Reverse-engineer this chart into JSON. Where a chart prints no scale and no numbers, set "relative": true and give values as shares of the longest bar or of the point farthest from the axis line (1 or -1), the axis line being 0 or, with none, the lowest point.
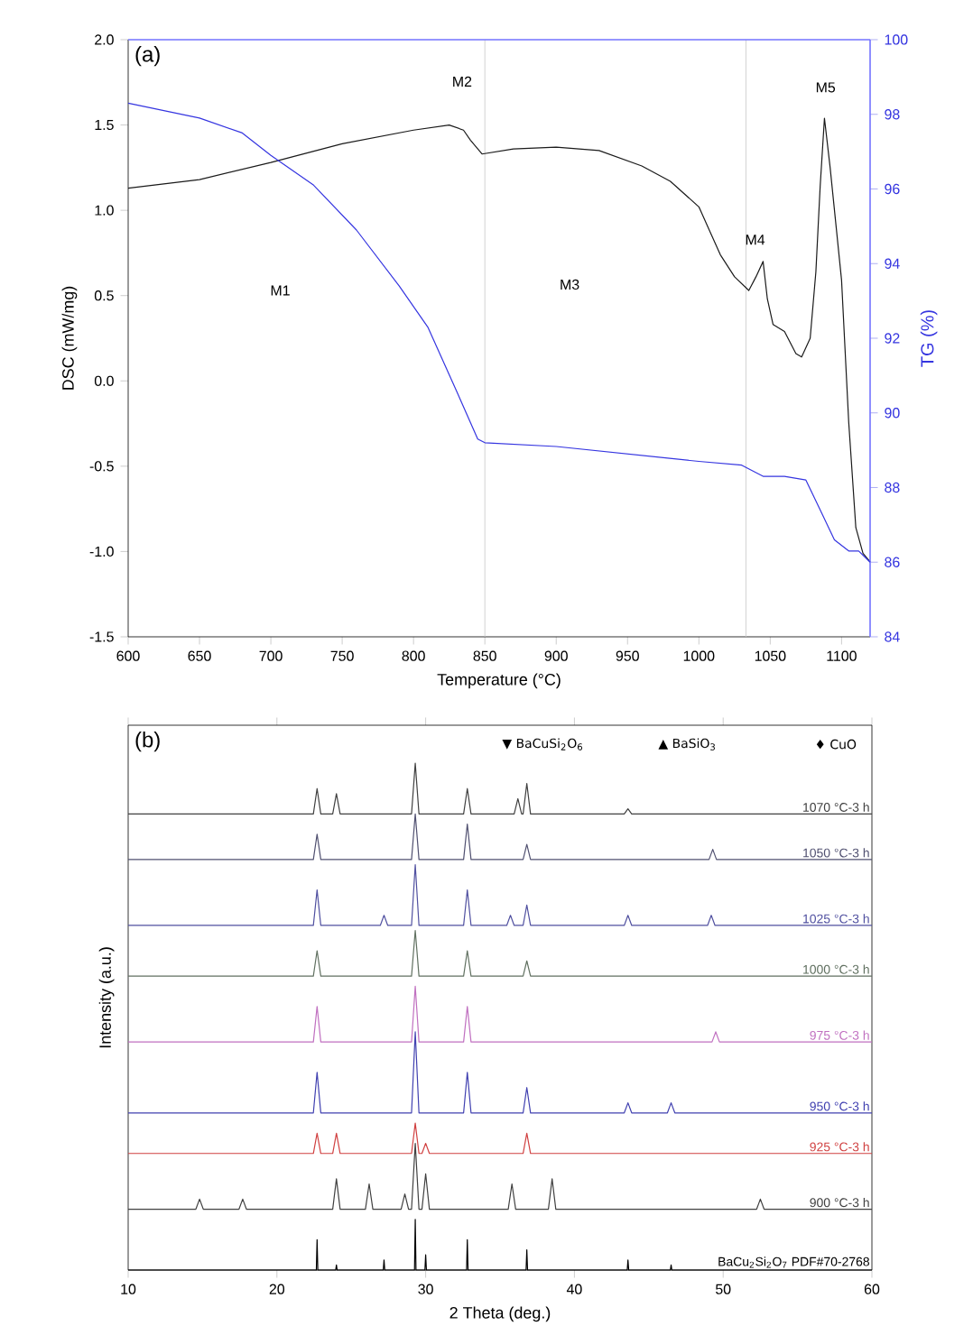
{
  "chart_data": [
    {
      "type": "line",
      "title": "(a)",
      "xlabel": "Temperature (°C)",
      "ylabel": "DSC (mW/mg)",
      "y2label": "TG (%)",
      "xlim": [
        600,
        1120
      ],
      "xticks": [
        600,
        650,
        700,
        750,
        800,
        850,
        900,
        950,
        1000,
        1050,
        1100
      ],
      "ylim": [
        -1.5,
        2.0
      ],
      "yticks": [
        -1.5,
        {
          "value": -1,
          "label": "-1.0"
        },
        -0.5,
        {
          "value": 0,
          "label": "0.0"
        },
        0.5,
        {
          "value": 1,
          "label": "1.0"
        },
        1.5,
        {
          "value": 2,
          "label": "2.0"
        }
      ],
      "y2lim": [
        84,
        100
      ],
      "y2ticks": [
        84,
        86,
        88,
        90,
        92,
        94,
        96,
        98,
        100
      ],
      "marker": "none",
      "series": [
        {
          "color": "#1a1a1a",
          "x": [
            600,
            650,
            700,
            750,
            800,
            825,
            835,
            840,
            848,
            870,
            900,
            930,
            960,
            980,
            1000,
            1015,
            1025,
            1035,
            1040,
            1045,
            1048,
            1052,
            1060,
            1068,
            1072,
            1078,
            1082,
            1085,
            1088,
            1092,
            1100,
            1105,
            1110,
            1115,
            1120
          ],
          "values": [
            1.13,
            1.18,
            1.28,
            1.39,
            1.47,
            1.5,
            1.47,
            1.41,
            1.33,
            1.36,
            1.37,
            1.35,
            1.26,
            1.17,
            1.02,
            0.74,
            0.61,
            0.53,
            0.61,
            0.7,
            0.48,
            0.33,
            0.29,
            0.16,
            0.14,
            0.25,
            0.64,
            1.14,
            1.54,
            1.25,
            0.59,
            -0.24,
            -0.86,
            -1.01,
            -1.06
          ]
        },
        {
          "axis": "y2",
          "color": "#3535e0",
          "x": [
            600,
            650,
            680,
            700,
            730,
            760,
            790,
            810,
            830,
            845,
            850,
            900,
            950,
            1000,
            1030,
            1045,
            1060,
            1075,
            1085,
            1095,
            1105,
            1112,
            1120
          ],
          "values": [
            98.3,
            97.9,
            97.5,
            96.9,
            96.1,
            94.9,
            93.4,
            92.3,
            90.6,
            89.3,
            89.2,
            89.1,
            88.9,
            88.7,
            88.6,
            88.3,
            88.3,
            88.2,
            87.4,
            86.6,
            86.3,
            86.3,
            86.0
          ]
        }
      ],
      "ref_lines": [
        {
          "axis": "x",
          "value": 850,
          "color": "#c8c8c8"
        },
        {
          "axis": "x",
          "value": 1033,
          "color": "#c8c8c8"
        }
      ],
      "annotations": [
        "M1",
        "M2",
        "M3",
        "M4",
        "M5"
      ]
    },
    {
      "type": "line",
      "title": "(b)",
      "xlabel": "2 Theta (deg.)",
      "ylabel": "Intensity (a.u.)",
      "relative": true,
      "xlim": [
        10,
        60
      ],
      "xticks": [
        10,
        20,
        30,
        40,
        50,
        60
      ],
      "marker": "none",
      "series": [
        {
          "name": "1070 °C-3 h",
          "color": "#404040",
          "x": [
            10,
            22.45,
            22.7,
            22.95,
            23.75,
            24.0,
            24.25,
            29.05,
            29.3,
            29.55,
            32.55,
            32.8,
            33.05,
            35.95,
            36.2,
            36.45,
            36.55,
            36.8,
            37.05,
            43.35,
            43.6,
            43.85,
            60
          ],
          "values": [
            0.9,
            0.9,
            0.95,
            0.9,
            0.9,
            0.94,
            0.9,
            0.9,
            1.0,
            0.9,
            0.9,
            0.95,
            0.9,
            0.9,
            0.93,
            0.9,
            0.9,
            0.96,
            0.9,
            0.9,
            0.91,
            0.9,
            0.9
          ]
        },
        {
          "name": "1050 °C-3 h",
          "color": "#505070",
          "x": [
            10,
            22.45,
            22.7,
            22.95,
            29.05,
            29.3,
            29.55,
            32.55,
            32.8,
            33.05,
            36.55,
            36.8,
            37.05,
            49.05,
            49.3,
            49.55,
            60
          ],
          "values": [
            0.81,
            0.81,
            0.86,
            0.81,
            0.81,
            0.9,
            0.81,
            0.81,
            0.88,
            0.81,
            0.81,
            0.84,
            0.81,
            0.81,
            0.83,
            0.81,
            0.81
          ]
        },
        {
          "name": "1025 °C-3 h",
          "color": "#5050a0",
          "x": [
            10,
            22.45,
            22.7,
            22.95,
            26.95,
            27.2,
            27.45,
            29.05,
            29.3,
            29.55,
            32.55,
            32.8,
            33.05,
            35.45,
            35.7,
            35.95,
            36.55,
            36.8,
            37.05,
            43.35,
            43.6,
            43.85,
            48.95,
            49.2,
            49.45,
            60
          ],
          "values": [
            0.68,
            0.68,
            0.75,
            0.68,
            0.68,
            0.7,
            0.68,
            0.68,
            0.8,
            0.68,
            0.68,
            0.75,
            0.68,
            0.68,
            0.7,
            0.68,
            0.68,
            0.72,
            0.68,
            0.68,
            0.7,
            0.68,
            0.68,
            0.7,
            0.68,
            0.68
          ]
        },
        {
          "name": "1000 °C-3 h",
          "color": "#607060",
          "x": [
            10,
            22.45,
            22.7,
            22.95,
            29.05,
            29.3,
            29.55,
            32.55,
            32.8,
            33.05,
            36.55,
            36.8,
            37.05,
            60
          ],
          "values": [
            0.58,
            0.58,
            0.63,
            0.58,
            0.58,
            0.67,
            0.58,
            0.58,
            0.63,
            0.58,
            0.58,
            0.61,
            0.58,
            0.58
          ]
        },
        {
          "name": "975 °C-3 h",
          "color": "#c070c0",
          "x": [
            10,
            22.45,
            22.7,
            22.95,
            29.05,
            29.3,
            29.55,
            32.55,
            32.8,
            33.05,
            49.25,
            49.5,
            49.75,
            60
          ],
          "values": [
            0.45,
            0.45,
            0.52,
            0.45,
            0.45,
            0.56,
            0.45,
            0.45,
            0.52,
            0.45,
            0.45,
            0.47,
            0.45,
            0.45
          ]
        },
        {
          "name": "950 °C-3 h",
          "color": "#4040b0",
          "x": [
            10,
            22.45,
            22.7,
            22.95,
            29.05,
            29.3,
            29.55,
            32.55,
            32.8,
            33.05,
            36.55,
            36.8,
            37.05,
            43.35,
            43.6,
            43.85,
            46.25,
            46.5,
            46.75,
            60
          ],
          "values": [
            0.31,
            0.31,
            0.39,
            0.31,
            0.31,
            0.47,
            0.31,
            0.31,
            0.39,
            0.31,
            0.31,
            0.36,
            0.31,
            0.31,
            0.33,
            0.31,
            0.31,
            0.33,
            0.31,
            0.31
          ]
        },
        {
          "name": "925 °C-3 h",
          "color": "#d04040",
          "x": [
            10,
            22.45,
            22.7,
            22.95,
            23.75,
            24.0,
            24.25,
            29.05,
            29.3,
            29.55,
            29.75,
            30.0,
            30.25,
            36.55,
            36.8,
            37.05,
            60
          ],
          "values": [
            0.23,
            0.23,
            0.27,
            0.23,
            0.23,
            0.27,
            0.23,
            0.23,
            0.29,
            0.23,
            0.23,
            0.25,
            0.23,
            0.23,
            0.27,
            0.23,
            0.23
          ]
        },
        {
          "name": "900 °C-3 h",
          "color": "#404040",
          "x": [
            10,
            14.55,
            14.8,
            15.05,
            17.45,
            17.7,
            17.95,
            23.75,
            24.0,
            24.25,
            25.95,
            26.2,
            26.45,
            28.35,
            28.6,
            28.85,
            29.05,
            29.3,
            29.55,
            29.75,
            30.0,
            30.25,
            35.55,
            35.8,
            36.05,
            38.25,
            38.5,
            38.75,
            52.25,
            52.5,
            52.75,
            60
          ],
          "values": [
            0.12,
            0.12,
            0.14,
            0.12,
            0.12,
            0.14,
            0.12,
            0.12,
            0.18,
            0.12,
            0.12,
            0.17,
            0.12,
            0.12,
            0.15,
            0.12,
            0.12,
            0.25,
            0.12,
            0.12,
            0.19,
            0.12,
            0.12,
            0.17,
            0.12,
            0.12,
            0.18,
            0.12,
            0.12,
            0.14,
            0.12,
            0.12
          ]
        },
        {
          "name": "BaCu$_{2}$Si$_{2}$O$_{7}$ PDF#70-2768",
          "color": "#000000",
          "x": [
            10,
            22.65,
            22.7,
            22.75,
            23.95,
            24.0,
            24.05,
            27.15,
            27.2,
            27.25,
            29.25,
            29.3,
            29.35,
            29.95,
            30.0,
            30.05,
            32.75,
            32.8,
            32.85,
            36.75,
            36.8,
            36.85,
            43.55,
            43.6,
            43.65,
            46.45,
            46.5,
            46.55,
            60
          ],
          "values": [
            0,
            0,
            0.06,
            0,
            0,
            0.01,
            0,
            0,
            0.02,
            0,
            0,
            0.1,
            0,
            0,
            0.03,
            0,
            0,
            0.06,
            0,
            0,
            0.04,
            0,
            0,
            0.02,
            0,
            0,
            0.01,
            0,
            0
          ]
        }
      ],
      "annotations": [
        "▼ BaCuSi$_{2}$O$_{6}$",
        "▲ BaSiO$_{3}$",
        "♦ CuO"
      ]
    }
  ]
}
